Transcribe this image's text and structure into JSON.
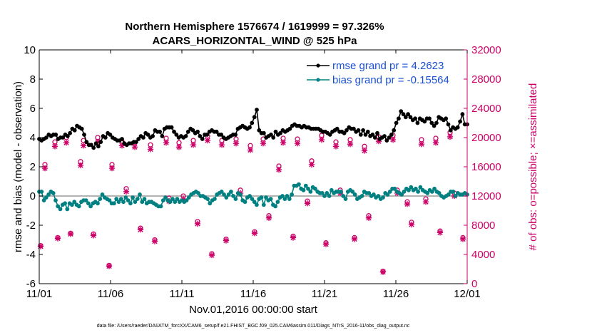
{
  "chart_data": {
    "type": "line",
    "title_line1": "Northern Hemisphere 1576674 / 1619999 = 97.326%",
    "title_line2": "ACARS_HORIZONTAL_WIND @ 525 hPa",
    "xlabel": "Nov.01,2016 00:00:00 start",
    "ylabel_left": "rmse and bias (model - observation)",
    "ylabel_right": "# of obs: o=possible; ×=assimilated",
    "footer": "data file: /Users/raeder/DAI/ATM_forcXX/CAM6_setup/f.e21.FHIST_BGC.f09_025.CAM6assim.011/Diags_NTrS_2016-11/obs_diag_output.nc",
    "xlim": [
      0,
      30
    ],
    "ylim_left": [
      -6,
      10
    ],
    "ylim_right": [
      0,
      32000
    ],
    "x_ticks": [
      0,
      5,
      10,
      15,
      20,
      25,
      30
    ],
    "x_tick_labels": [
      "11/01",
      "11/06",
      "11/11",
      "11/16",
      "11/21",
      "11/26",
      "12/01"
    ],
    "y_ticks_left": [
      -6,
      -4,
      -2,
      0,
      2,
      4,
      6,
      8,
      10
    ],
    "y_tick_labels_left": [
      "-6",
      "-4",
      "-2",
      "0",
      "2",
      "4",
      "6",
      "8",
      "10"
    ],
    "y_ticks_right": [
      0,
      4000,
      8000,
      12000,
      16000,
      20000,
      24000,
      28000,
      32000
    ],
    "y_tick_labels_right": [
      "0",
      "4000",
      "8000",
      "12000",
      "16000",
      "20000",
      "24000",
      "28000",
      "32000"
    ],
    "colors": {
      "rmse": "#000000",
      "bias": "#008080",
      "obs": "#cc0066",
      "legend_text": "#1a4fd6",
      "zero_line": "#b3b3b3"
    },
    "legend_position": "top-right",
    "series": [
      {
        "name": "rmse grand pr = 4.2623",
        "key": "rmse",
        "values": [
          3.9,
          3.8,
          3.9,
          4.0,
          4.2,
          4.1,
          4.2,
          4.2,
          3.9,
          4.0,
          4.0,
          4.2,
          4.1,
          4.3,
          4.6,
          4.5,
          4.8,
          4.7,
          4.6,
          4.2,
          3.7,
          3.5,
          3.5,
          3.3,
          3.6,
          3.4,
          3.7,
          4.1,
          4.0,
          4.3,
          4.2,
          4.0,
          3.9,
          3.8,
          3.8,
          3.9,
          3.6,
          3.5,
          3.6,
          3.6,
          3.7,
          3.7,
          3.9,
          4.1,
          4.0,
          4.3,
          4.2,
          4.0,
          4.1,
          4.5,
          4.4,
          4.4,
          4.1,
          4.6,
          4.7,
          4.7,
          4.7,
          4.4,
          4.2,
          4.0,
          4.1,
          4.0,
          4.1,
          4.4,
          4.6,
          4.5,
          4.3,
          4.4,
          4.1,
          3.9,
          4.2,
          4.2,
          4.4,
          4.5,
          4.4,
          4.4,
          4.2,
          4.2,
          4.0,
          3.9,
          4.0,
          4.1,
          4.2,
          4.2,
          4.6,
          4.7,
          4.8,
          4.7,
          4.6,
          4.7,
          5.0,
          5.4,
          5.9,
          4.5,
          4.3,
          4.3,
          4.0,
          4.1,
          4.2,
          4.0,
          4.4,
          4.2,
          4.3,
          4.5,
          4.4,
          4.5,
          4.6,
          4.8,
          4.9,
          4.8,
          4.8,
          4.7,
          4.8,
          4.7,
          4.7,
          4.6,
          4.6,
          4.6,
          4.6,
          4.5,
          4.4,
          4.4,
          4.3,
          4.2,
          4.4,
          4.5,
          4.6,
          4.4,
          4.4,
          4.3,
          4.5,
          4.7,
          4.6,
          4.6,
          4.4,
          4.5,
          4.2,
          4.5,
          4.2,
          4.4,
          4.1,
          4.2,
          4.0,
          4.3,
          3.9,
          4.0,
          4.1,
          3.8,
          4.0,
          4.2,
          4.5,
          5.0,
          5.3,
          5.8,
          5.6,
          5.4,
          5.6,
          5.4,
          5.2,
          5.3,
          5.0,
          5.3,
          5.2,
          5.1,
          5.3,
          5.3,
          5.0,
          4.8,
          5.0,
          5.4,
          5.3,
          5.2,
          5.3,
          4.9,
          4.5,
          4.7,
          4.6,
          4.7,
          5.1,
          5.6,
          4.9,
          4.9
        ]
      },
      {
        "name": "bias grand pr = -0.15564",
        "key": "bias",
        "values": [
          0.3,
          0.3,
          -0.3,
          -0.1,
          0.1,
          0.3,
          0.2,
          -0.3,
          -0.7,
          -0.9,
          -0.6,
          -0.5,
          -0.9,
          -0.5,
          -0.6,
          -0.4,
          -0.6,
          -0.7,
          -0.4,
          -0.3,
          -0.3,
          -0.5,
          -0.7,
          -0.5,
          -0.4,
          -0.5,
          -0.2,
          0.1,
          -0.1,
          -0.2,
          -0.3,
          -0.5,
          -0.5,
          -0.2,
          -0.4,
          -0.2,
          -0.4,
          -0.1,
          -0.3,
          -0.5,
          -0.1,
          -0.4,
          -0.2,
          0.1,
          -0.4,
          -0.2,
          -0.5,
          -0.4,
          -0.4,
          -0.5,
          -0.6,
          -0.7,
          -0.7,
          -0.3,
          -0.1,
          -0.3,
          -0.4,
          -0.2,
          -0.4,
          -0.2,
          -0.4,
          -0.3,
          -0.4,
          -0.3,
          -0.1,
          0.1,
          0.2,
          0.3,
          0.2,
          0.0,
          0.0,
          -0.1,
          -0.2,
          -0.5,
          -0.3,
          -0.2,
          0.1,
          0.2,
          0.3,
          0.1,
          -0.1,
          0.1,
          0.3,
          0.0,
          -0.2,
          0.2,
          0.1,
          -0.3,
          -0.4,
          -0.1,
          0.0,
          -0.2,
          -0.4,
          -0.6,
          -0.2,
          -0.1,
          -0.6,
          -0.1,
          -0.3,
          -0.2,
          -0.6,
          -0.7,
          -0.4,
          -0.1,
          0.0,
          -0.2,
          0.0,
          -0.2,
          0.1,
          0.7,
          0.7,
          0.8,
          0.5,
          0.4,
          0.7,
          0.5,
          0.3,
          0.6,
          0.5,
          0.3,
          0.2,
          0.2,
          0.0,
          0.2,
          0.0,
          0.4,
          0.2,
          0.3,
          0.3,
          0.3,
          0.0,
          -0.2,
          0.3,
          0.4,
          0.3,
          0.1,
          -0.2,
          -0.1,
          0.0,
          0.3,
          0.2,
          0.2,
          0.0,
          0.1,
          -0.1,
          0.0,
          -0.2,
          -0.1,
          0.2,
          0.1,
          0.3,
          0.5,
          0.5,
          0.3,
          0.2,
          0.1,
          0.3,
          0.5,
          0.4,
          0.6,
          0.4,
          0.5,
          0.3,
          0.6,
          0.4,
          0.3,
          0.2,
          0.4,
          0.3,
          0.5,
          0.3,
          0.2,
          0.0,
          -0.1,
          0.0,
          0.1,
          0.3,
          0.3,
          0.0,
          0.2,
          0.1,
          0.1,
          0.2,
          0.1
        ],
        "note": "plotted on left axis"
      },
      {
        "name": "possible",
        "key": "possible",
        "axis": "right",
        "x": [
          0.1,
          0.4,
          1.1,
          1.3,
          1.9,
          2.2,
          2.9,
          3.1,
          3.8,
          4.1,
          4.9,
          5.1,
          5.8,
          6.1,
          6.7,
          7.1,
          7.8,
          8.1,
          8.9,
          9.1,
          9.8,
          10.1,
          10.8,
          11.1,
          11.8,
          12.1,
          12.8,
          13.1,
          13.8,
          14.1,
          14.8,
          15.1,
          15.7,
          16.1,
          16.8,
          17.1,
          17.8,
          18.1,
          18.8,
          19.1,
          19.8,
          20.1,
          20.8,
          21.1,
          21.8,
          22.1,
          22.8,
          23.1,
          23.8,
          24.1,
          24.8,
          25.1,
          25.8,
          26.1,
          26.8,
          27.1,
          27.8,
          28.1,
          28.8,
          29.1,
          29.7
        ],
        "values": [
          5200,
          16300,
          19400,
          6300,
          20000,
          6900,
          16700,
          19600,
          6800,
          20000,
          2500,
          16300,
          19500,
          13000,
          19300,
          7600,
          19000,
          6000,
          19900,
          11700,
          19300,
          12000,
          19600,
          8500,
          20200,
          4100,
          19600,
          6100,
          19800,
          12800,
          18900,
          7100,
          19800,
          9300,
          16100,
          19900,
          6500,
          19800,
          11300,
          16800,
          20300,
          5600,
          19400,
          12800,
          19700,
          6300,
          18800,
          9300,
          20100,
          1700,
          20300,
          12800,
          11200,
          8400,
          19700,
          11600,
          19900,
          7200,
          20700,
          12400,
          6300
        ]
      },
      {
        "name": "assimilated",
        "key": "assimilated",
        "axis": "right",
        "x": [
          0.1,
          0.4,
          1.1,
          1.3,
          1.9,
          2.2,
          2.9,
          3.1,
          3.8,
          4.1,
          4.9,
          5.1,
          5.8,
          6.1,
          6.7,
          7.1,
          7.8,
          8.1,
          8.9,
          9.1,
          9.8,
          10.1,
          10.8,
          11.1,
          11.8,
          12.1,
          12.8,
          13.1,
          13.8,
          14.1,
          14.8,
          15.1,
          15.7,
          16.1,
          16.8,
          17.1,
          17.8,
          18.1,
          18.8,
          19.1,
          19.8,
          20.1,
          20.8,
          21.1,
          21.8,
          22.1,
          22.8,
          23.1,
          23.8,
          24.1,
          24.8,
          25.1,
          25.8,
          26.1,
          26.8,
          27.1,
          27.8,
          28.1,
          28.8,
          29.1,
          29.7
        ],
        "values": [
          5100,
          15800,
          18800,
          6200,
          19300,
          6800,
          16200,
          18900,
          6600,
          19400,
          2400,
          15800,
          18900,
          12600,
          18700,
          7400,
          18400,
          5800,
          19300,
          11300,
          18700,
          11600,
          19000,
          8200,
          19600,
          3900,
          19000,
          5900,
          19200,
          12400,
          18300,
          6900,
          19200,
          9000,
          15600,
          19300,
          6300,
          19200,
          11000,
          16300,
          19700,
          5400,
          18800,
          12400,
          19100,
          6100,
          18200,
          9000,
          19500,
          1600,
          19700,
          12400,
          10900,
          8100,
          19100,
          11200,
          19300,
          7000,
          20100,
          12000,
          6100
        ]
      }
    ]
  }
}
